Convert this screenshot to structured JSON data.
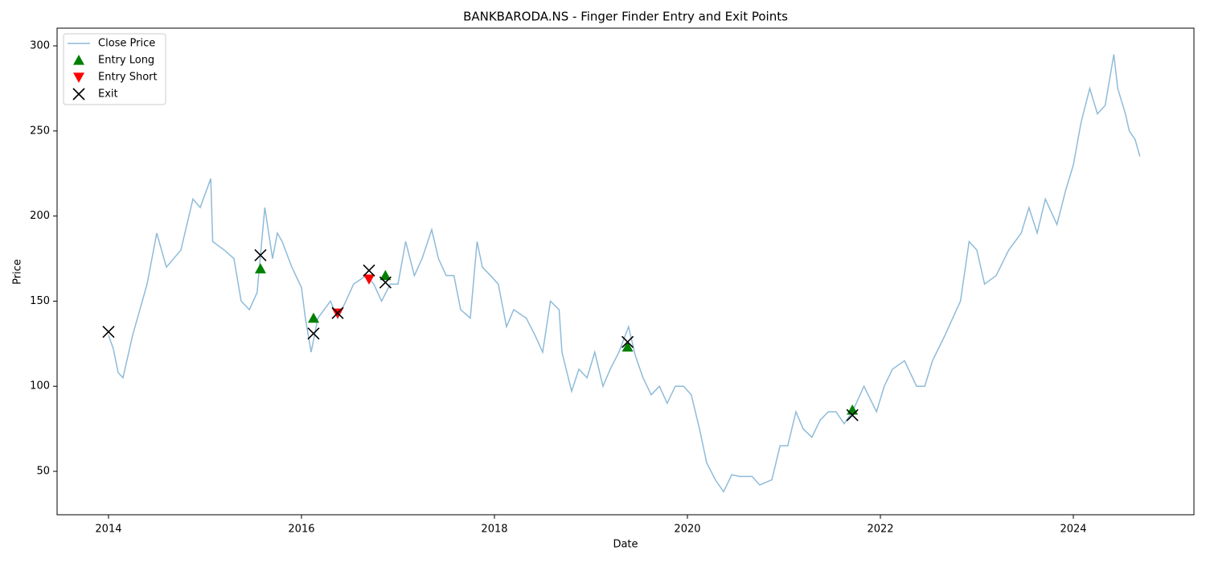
{
  "chart_data": {
    "type": "line",
    "title": "BANKBARODA.NS - Finger Finder Entry and Exit Points",
    "x_label": "Date",
    "y_label": "Price",
    "xlim": [
      2013.467,
      2025.25
    ],
    "ylim": [
      24.5,
      310.4
    ],
    "xticks": [
      2014,
      2016,
      2018,
      2020,
      2022,
      2024
    ],
    "yticks": [
      50,
      100,
      150,
      200,
      250,
      300
    ],
    "grid": false,
    "legend": "upper left",
    "series": [
      {
        "name": "Close Price",
        "color": "#1f77b4",
        "marker": "line",
        "x": [
          2014.0,
          2014.05,
          2014.1,
          2014.15,
          2014.25,
          2014.4,
          2014.5,
          2014.6,
          2014.75,
          2014.875,
          2014.95,
          2015.06,
          2015.08,
          2015.2,
          2015.3,
          2015.375,
          2015.46,
          2015.54,
          2015.62,
          2015.7,
          2015.75,
          2015.8,
          2015.9,
          2016.0,
          2016.04,
          2016.1,
          2016.17,
          2016.3,
          2016.375,
          2016.46,
          2016.54,
          2016.67,
          2016.75,
          2016.83,
          2016.92,
          2017.0,
          2017.08,
          2017.17,
          2017.25,
          2017.35,
          2017.42,
          2017.5,
          2017.58,
          2017.65,
          2017.75,
          2017.82,
          2017.875,
          2017.96,
          2018.04,
          2018.125,
          2018.2,
          2018.33,
          2018.42,
          2018.5,
          2018.58,
          2018.67,
          2018.7,
          2018.8,
          2018.875,
          2018.96,
          2019.04,
          2019.125,
          2019.2,
          2019.29,
          2019.39,
          2019.46,
          2019.54,
          2019.625,
          2019.71,
          2019.79,
          2019.875,
          2019.96,
          2020.04,
          2020.125,
          2020.2,
          2020.29,
          2020.375,
          2020.46,
          2020.54,
          2020.67,
          2020.75,
          2020.875,
          2020.96,
          2021.04,
          2021.125,
          2021.2,
          2021.29,
          2021.375,
          2021.46,
          2021.54,
          2021.625,
          2021.71,
          2021.83,
          2021.96,
          2022.04,
          2022.125,
          2022.25,
          2022.375,
          2022.46,
          2022.54,
          2022.67,
          2022.75,
          2022.83,
          2022.92,
          2023.0,
          2023.08,
          2023.2,
          2023.33,
          2023.46,
          2023.54,
          2023.625,
          2023.71,
          2023.83,
          2023.92,
          2024.0,
          2024.08,
          2024.17,
          2024.25,
          2024.33,
          2024.42,
          2024.46,
          2024.54,
          2024.58,
          2024.64,
          2024.69
        ],
        "values": [
          130,
          122,
          108,
          105,
          130,
          160,
          190,
          170,
          180,
          210,
          205,
          222,
          185,
          180,
          175,
          150,
          145,
          155,
          205,
          175,
          190,
          185,
          170,
          158,
          140,
          120,
          140,
          150,
          140,
          150,
          160,
          165,
          160,
          150,
          160,
          160,
          185,
          165,
          175,
          192,
          175,
          165,
          165,
          145,
          140,
          185,
          170,
          165,
          160,
          135,
          145,
          140,
          130,
          120,
          150,
          145,
          120,
          97,
          110,
          105,
          120,
          100,
          110,
          120,
          135,
          118,
          105,
          95,
          100,
          90,
          100,
          100,
          95,
          75,
          55,
          45,
          38,
          48,
          47,
          47,
          42,
          45,
          65,
          65,
          85,
          75,
          70,
          80,
          85,
          85,
          78,
          85,
          100,
          85,
          100,
          110,
          115,
          100,
          100,
          115,
          130,
          140,
          150,
          185,
          180,
          160,
          165,
          180,
          190,
          205,
          190,
          210,
          195,
          215,
          230,
          255,
          275,
          260,
          265,
          295,
          275,
          260,
          250,
          245,
          235
        ]
      },
      {
        "name": "Entry Long",
        "color": "#008000",
        "marker": "^",
        "x": [
          2015.575,
          2016.125,
          2016.87,
          2019.38,
          2021.71
        ],
        "values": [
          169,
          140,
          165,
          123,
          86
        ]
      },
      {
        "name": "Entry Short",
        "color": "#ff0000",
        "marker": "v",
        "x": [
          2016.375,
          2016.7
        ],
        "values": [
          143,
          163
        ]
      },
      {
        "name": "Exit",
        "color": "#000000",
        "marker": "x",
        "x": [
          2014.0,
          2015.575,
          2016.125,
          2016.375,
          2016.7,
          2016.87,
          2019.38,
          2021.71
        ],
        "values": [
          132,
          177,
          131,
          143,
          168,
          161,
          126,
          83
        ]
      }
    ]
  }
}
